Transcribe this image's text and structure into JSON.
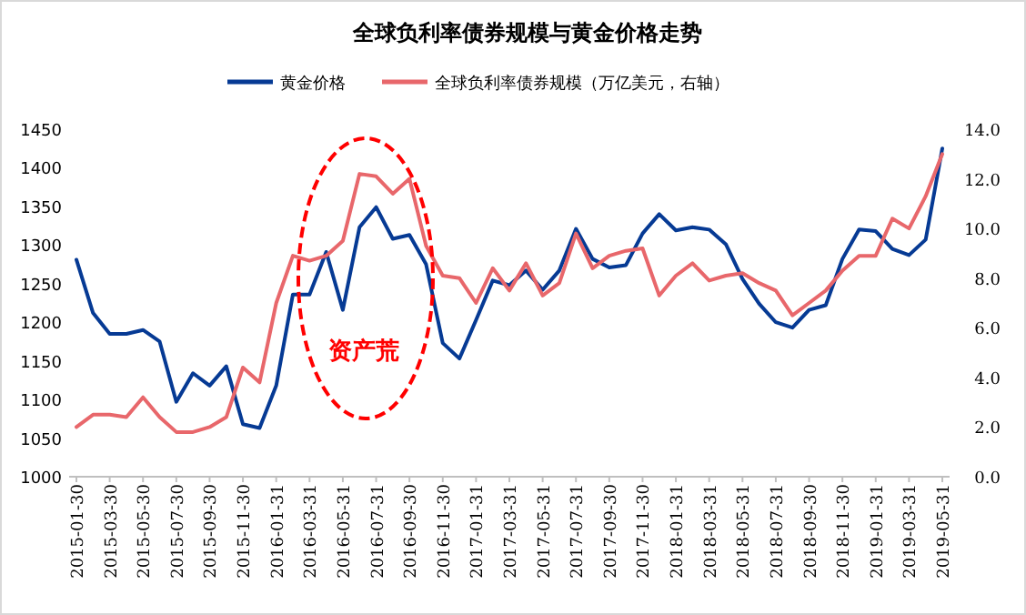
{
  "chart_data": {
    "type": "line",
    "title": "全球负利率债券规模与黄金价格走势",
    "categories": [
      "2015-01-30",
      null,
      "2015-03-30",
      null,
      "2015-05-30",
      null,
      "2015-07-30",
      null,
      "2015-09-30",
      null,
      "2015-11-30",
      null,
      "2016-01-31",
      null,
      "2016-03-31",
      null,
      "2016-05-31",
      null,
      "2016-07-31",
      null,
      "2016-09-30",
      null,
      "2016-11-30",
      null,
      "2017-01-31",
      null,
      "2017-03-31",
      null,
      "2017-05-31",
      null,
      "2017-07-31",
      null,
      "2017-09-30",
      null,
      "2017-11-30",
      null,
      "2018-01-31",
      null,
      "2018-03-31",
      null,
      "2018-05-31",
      null,
      "2018-07-31",
      null,
      "2018-09-30",
      null,
      "2018-11-30",
      null,
      "2019-01-31",
      null,
      "2019-03-31",
      null,
      "2019-05-31"
    ],
    "series": [
      {
        "name": "黄金价格",
        "color": "#063a94",
        "values": [
          1281,
          1212,
          1185,
          1185,
          1190,
          1175,
          1097,
          1134,
          1118,
          1143,
          1068,
          1063,
          1118,
          1236,
          1236,
          1291,
          1216,
          1323,
          1349,
          1308,
          1313,
          1275,
          1173,
          1153,
          1203,
          1254,
          1248,
          1267,
          1242,
          1267,
          1321,
          1282,
          1271,
          1274,
          1315,
          1340,
          1319,
          1323,
          1320,
          1301,
          1256,
          1224,
          1200,
          1193,
          1216,
          1222,
          1282,
          1320,
          1318,
          1295,
          1287,
          1307,
          1425
        ]
      },
      {
        "name": "全球负利率债券规模（万亿美元，右轴）",
        "color": "#e8676b",
        "axis": "y2",
        "values": [
          2.0,
          2.5,
          2.5,
          2.4,
          3.2,
          2.4,
          1.8,
          1.8,
          2.0,
          2.4,
          4.4,
          3.8,
          7.0,
          8.9,
          8.7,
          8.9,
          9.5,
          12.2,
          12.1,
          11.4,
          12.0,
          9.3,
          8.1,
          8.0,
          7.0,
          8.4,
          7.5,
          8.6,
          7.3,
          7.8,
          9.8,
          8.4,
          8.9,
          9.1,
          9.2,
          7.3,
          8.1,
          8.6,
          7.9,
          8.1,
          8.2,
          7.8,
          7.5,
          6.5,
          7.0,
          7.5,
          8.3,
          8.9,
          8.9,
          10.4,
          10.0,
          11.3,
          13.0
        ]
      }
    ],
    "ylim": [
      1000,
      1450
    ],
    "yticks": [
      1000,
      1050,
      1100,
      1150,
      1200,
      1250,
      1300,
      1350,
      1400,
      1450
    ],
    "y2lim": [
      0,
      14
    ],
    "y2ticks": [
      {
        "value": 0,
        "label": "0.0"
      },
      {
        "value": 2,
        "label": "2.0"
      },
      {
        "value": 4,
        "label": "4.0"
      },
      {
        "value": 6,
        "label": "6.0"
      },
      {
        "value": 8,
        "label": "8.0"
      },
      {
        "value": 10,
        "label": "10.0"
      },
      {
        "value": 12,
        "label": "12.0"
      },
      {
        "value": 14,
        "label": "14.0"
      }
    ],
    "annotations": [
      "资产荒"
    ],
    "legend": "top",
    "grid": false
  }
}
